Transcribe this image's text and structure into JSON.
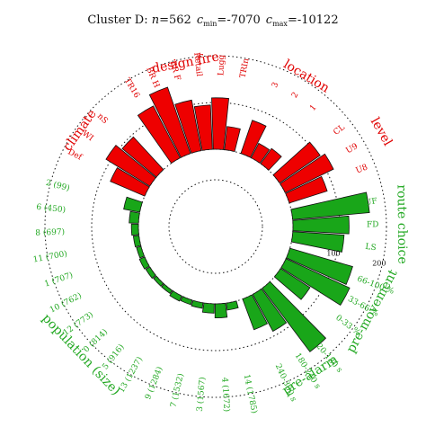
{
  "chart_data": {
    "type": "radial-bar",
    "title": {
      "prefix": "Cluster D: ",
      "n_label": "n",
      "n_value": "=562",
      "cmin_base": "c",
      "cmin_sub": "min",
      "cmin_value": "=-7070",
      "cmax_base": "c",
      "cmax_sub": "max",
      "cmax_value": "=-10122"
    },
    "radial_ticks": [
      "100",
      "200"
    ],
    "colors": {
      "red": "#ee0000",
      "green": "#19a619"
    },
    "groups": [
      {
        "name": "design fire",
        "color": "red",
        "bars": [
          {
            "label": "TR16",
            "value": 125
          },
          {
            "label": "BR H",
            "value": 150
          },
          {
            "label": "BR F",
            "value": 110
          },
          {
            "label": "Retail",
            "value": 95
          },
          {
            "label": "Lugg",
            "value": 110
          },
          {
            "label": "TRIn",
            "value": 50
          }
        ]
      },
      {
        "name": "location",
        "color": "red",
        "bars": [
          {
            "label": "3",
            "value": 75
          },
          {
            "label": "2",
            "value": 35
          },
          {
            "label": "1",
            "value": 40
          }
        ]
      },
      {
        "name": "level",
        "color": "red",
        "bars": [
          {
            "label": "CL",
            "value": 105
          },
          {
            "label": "U9",
            "value": 115
          },
          {
            "label": "U8",
            "value": 85
          }
        ]
      },
      {
        "name": "route choice",
        "color": "green",
        "bars": [
          {
            "label": "UF",
            "value": 165
          },
          {
            "label": "FD",
            "value": 120
          },
          {
            "label": "LS",
            "value": 110
          }
        ]
      },
      {
        "name": "pre-movement",
        "color": "green",
        "bars": [
          {
            "label": "66-100 %",
            "value": 140
          },
          {
            "label": "33-66 %",
            "value": 150
          },
          {
            "label": "0-33 %",
            "value": 75
          }
        ]
      },
      {
        "name": "pre-alarm",
        "color": "green",
        "bars": [
          {
            "label": "120-180 s",
            "value": 170
          },
          {
            "label": "180-240 s",
            "value": 90
          },
          {
            "label": "240-300 s",
            "value": 70
          }
        ]
      },
      {
        "name": "population (size)",
        "color": "green",
        "bars": [
          {
            "label": "14 (1785)",
            "value": 15
          },
          {
            "label": "4 (1672)",
            "value": 30
          },
          {
            "label": "3 (1567)",
            "value": 20
          },
          {
            "label": "7 (1532)",
            "value": 12
          },
          {
            "label": "9 (1284)",
            "value": 10
          },
          {
            "label": "13 (1237)",
            "value": 12
          },
          {
            "label": "5 (916)",
            "value": 8
          },
          {
            "label": "0 (814)",
            "value": 8
          },
          {
            "label": "12 (773)",
            "value": 10
          },
          {
            "label": "10 (762)",
            "value": 12
          },
          {
            "label": "1 (707)",
            "value": 10
          },
          {
            "label": "11 (700)",
            "value": 12
          },
          {
            "label": "8 (697)",
            "value": 15
          },
          {
            "label": "6 (450)",
            "value": 20
          },
          {
            "label": "2 (99)",
            "value": 35
          }
        ]
      },
      {
        "name": "climate",
        "color": "red",
        "bars": [
          {
            "label": "Def",
            "value": 80
          },
          {
            "label": "WI",
            "value": 110
          },
          {
            "label": "nS",
            "value": 95
          }
        ]
      }
    ]
  }
}
